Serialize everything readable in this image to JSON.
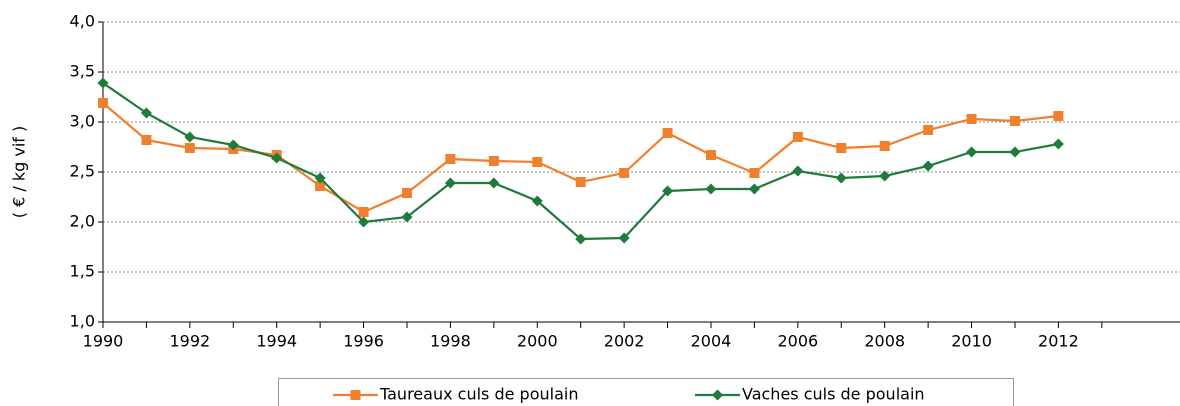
{
  "chart_data": {
    "type": "line",
    "y_label": "( € / kg vif )",
    "x": [
      1990,
      1991,
      1992,
      1993,
      1994,
      1995,
      1996,
      1997,
      1998,
      1999,
      2000,
      2001,
      2002,
      2003,
      2004,
      2005,
      2006,
      2007,
      2008,
      2009,
      2010,
      2011,
      2012
    ],
    "series": [
      {
        "name": "Taureaux culs de poulain",
        "color": "#f07f2e",
        "marker": "square",
        "values": [
          3.19,
          2.82,
          2.74,
          2.73,
          2.67,
          2.36,
          2.1,
          2.29,
          2.63,
          2.61,
          2.6,
          2.4,
          2.49,
          2.89,
          2.67,
          2.49,
          2.85,
          2.74,
          2.76,
          2.92,
          3.03,
          3.01,
          3.06
        ]
      },
      {
        "name": "Vaches culs de poulain",
        "color": "#1e7b3b",
        "marker": "diamond",
        "values": [
          3.39,
          3.09,
          2.85,
          2.77,
          2.64,
          2.44,
          2.0,
          2.05,
          2.39,
          2.39,
          2.21,
          1.83,
          1.84,
          2.31,
          2.33,
          2.33,
          2.51,
          2.44,
          2.46,
          2.56,
          2.7,
          2.7,
          2.78
        ]
      }
    ],
    "xlim": [
      1990,
      2014.8
    ],
    "xticks": [
      1990,
      1992,
      1994,
      1996,
      1998,
      2000,
      2002,
      2004,
      2006,
      2008,
      2010,
      2012
    ],
    "xminorticks": [
      1991,
      1993,
      1995,
      1997,
      1999,
      2001,
      2003,
      2005,
      2007,
      2009,
      2011,
      2013
    ],
    "ylim": [
      1,
      4
    ],
    "yticks": [
      {
        "value": 1,
        "label": "1,0"
      },
      {
        "value": 1.5,
        "label": "1,5"
      },
      {
        "value": 2,
        "label": "2,0"
      },
      {
        "value": 2.5,
        "label": "2,5"
      },
      {
        "value": 3,
        "label": "3,0"
      },
      {
        "value": 3.5,
        "label": "3,5"
      },
      {
        "value": 4,
        "label": "4,0"
      }
    ],
    "grid": true,
    "legend": "bottom"
  }
}
